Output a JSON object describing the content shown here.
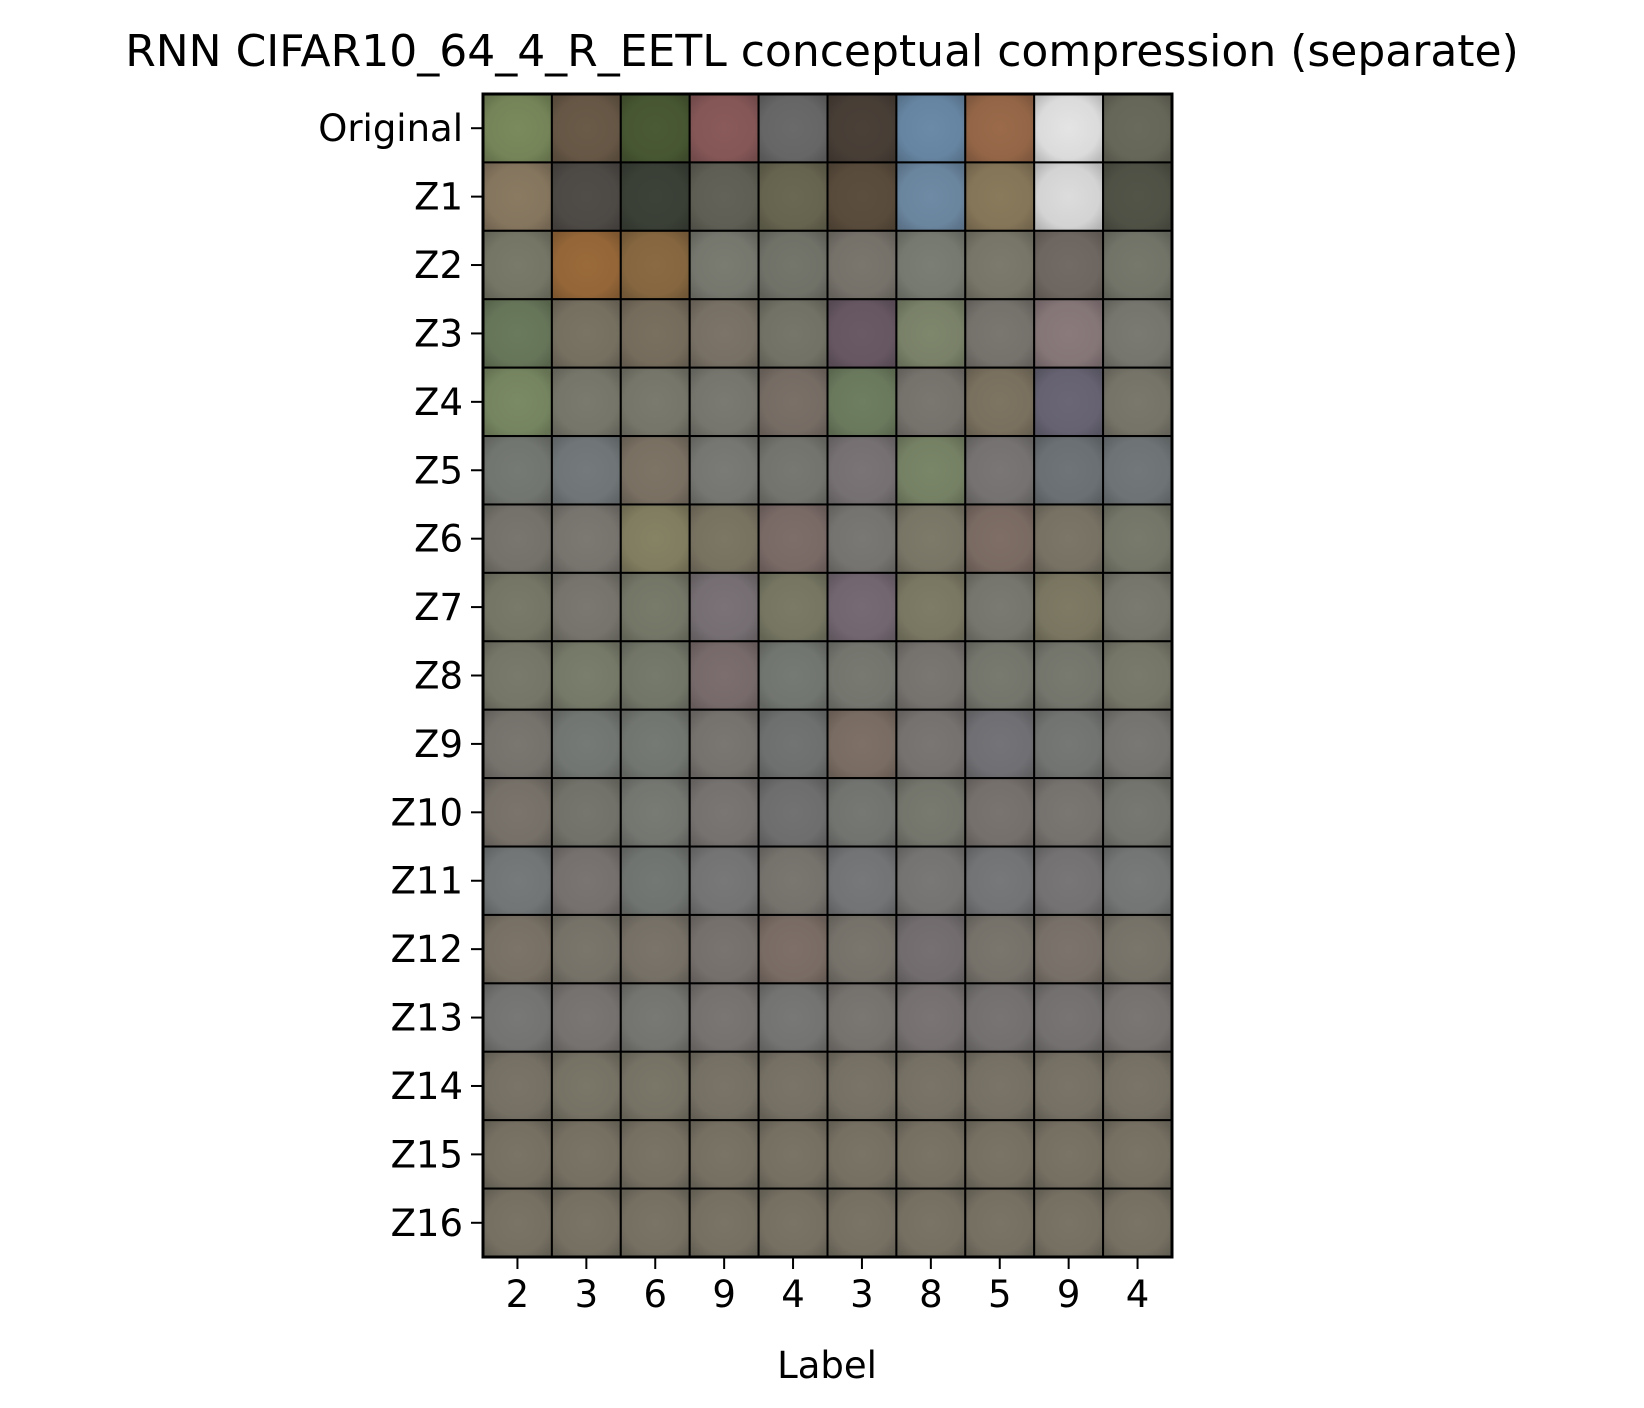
{
  "chart_data": {
    "type": "image_grid",
    "title": "RNN CIFAR10_64_4_R_EETL conceptual compression (separate)",
    "xlabel": "Label",
    "ylabel": "",
    "row_labels": [
      "Original",
      "Z1",
      "Z2",
      "Z3",
      "Z4",
      "Z5",
      "Z6",
      "Z7",
      "Z8",
      "Z9",
      "Z10",
      "Z11",
      "Z12",
      "Z13",
      "Z14",
      "Z15",
      "Z16"
    ],
    "column_labels": [
      "2",
      "3",
      "6",
      "9",
      "4",
      "3",
      "8",
      "5",
      "9",
      "4"
    ],
    "cell_colors": [
      [
        "#7a8a5c",
        "#6a5a48",
        "#4a5a34",
        "#8a5a5a",
        "#6a6a6a",
        "#4a4038",
        "#6a8aa8",
        "#9a6a4a",
        "#e4e4e4",
        "#6a6a5c"
      ],
      [
        "#8a7a62",
        "#504c48",
        "#3c4238",
        "#626258",
        "#6a6852",
        "#5c4e3e",
        "#6e8aa4",
        "#8a7a5c",
        "#dcdcdc",
        "#525448"
      ],
      [
        "#7a7a6a",
        "#9a6a3a",
        "#8a6a42",
        "#7a7c72",
        "#74766c",
        "#7a766e",
        "#7a7e74",
        "#7c7a6c",
        "#726a64",
        "#76786c"
      ],
      [
        "#6a7a5c",
        "#7a7464",
        "#7a7060",
        "#7c7468",
        "#76766a",
        "#6a5a66",
        "#7e866c",
        "#7a7670",
        "#8a7a7c",
        "#7a7a72"
      ],
      [
        "#7a8a64",
        "#7a7a6e",
        "#7a7a6e",
        "#7a7a72",
        "#7a7068",
        "#6e7e60",
        "#7a7670",
        "#7e7462",
        "#6a6676",
        "#7a786c"
      ],
      [
        "#767a74",
        "#747a7c",
        "#7e7466",
        "#7a7a76",
        "#787872",
        "#7a7476",
        "#7a8668",
        "#7a7676",
        "#6e7478",
        "#72787a"
      ],
      [
        "#78766e",
        "#7c7872",
        "#868264",
        "#7c7664",
        "#7e6e6a",
        "#7a7874",
        "#7e7a6a",
        "#7e6e66",
        "#7c7668",
        "#787a6c"
      ],
      [
        "#7a7a6a",
        "#7a7870",
        "#787a6a",
        "#7a7276",
        "#7a7a66",
        "#766a74",
        "#7e7c66",
        "#7a7a72",
        "#7e7a64",
        "#7a7a70"
      ],
      [
        "#7a7a6c",
        "#7a7e6c",
        "#767a6c",
        "#7c6e6e",
        "#767a74",
        "#787a72",
        "#7a7672",
        "#787a70",
        "#787a70",
        "#7a7a6c"
      ],
      [
        "#7a7670",
        "#767a76",
        "#767a74",
        "#7a7672",
        "#727474",
        "#7e7066",
        "#7a7674",
        "#747478",
        "#767876",
        "#7a7874"
      ],
      [
        "#7a746c",
        "#76766e",
        "#787a74",
        "#7a7674",
        "#727272",
        "#767874",
        "#787a70",
        "#7a7470",
        "#7a7672",
        "#787872"
      ],
      [
        "#767a7a",
        "#7a7472",
        "#747874",
        "#787878",
        "#7a7670",
        "#76787a",
        "#7a7876",
        "#76787a",
        "#787676",
        "#787a7a"
      ],
      [
        "#7c7468",
        "#7a766c",
        "#7a746a",
        "#7a7470",
        "#7e7068",
        "#7a766e",
        "#767072",
        "#7a766e",
        "#7c746c",
        "#7a766c"
      ],
      [
        "#787876",
        "#7a7674",
        "#787874",
        "#7a7674",
        "#787876",
        "#7a7672",
        "#7a7474",
        "#787474",
        "#787474",
        "#7a7674"
      ],
      [
        "#7a7468",
        "#7a7668",
        "#7a7668",
        "#7a7468",
        "#7a7468",
        "#7a7468",
        "#7a7468",
        "#7a7468",
        "#7a7468",
        "#7a7468"
      ],
      [
        "#7a7466",
        "#7a7466",
        "#7a7466",
        "#7a7466",
        "#7a7466",
        "#7a7466",
        "#7a7466",
        "#7a7466",
        "#7a7466",
        "#7a7466"
      ],
      [
        "#7a7466",
        "#7a7466",
        "#7a7466",
        "#7a7466",
        "#7a7466",
        "#7a7466",
        "#7a7466",
        "#7a7466",
        "#7a7466",
        "#7a7466"
      ]
    ],
    "grid": false,
    "legend": "none"
  }
}
